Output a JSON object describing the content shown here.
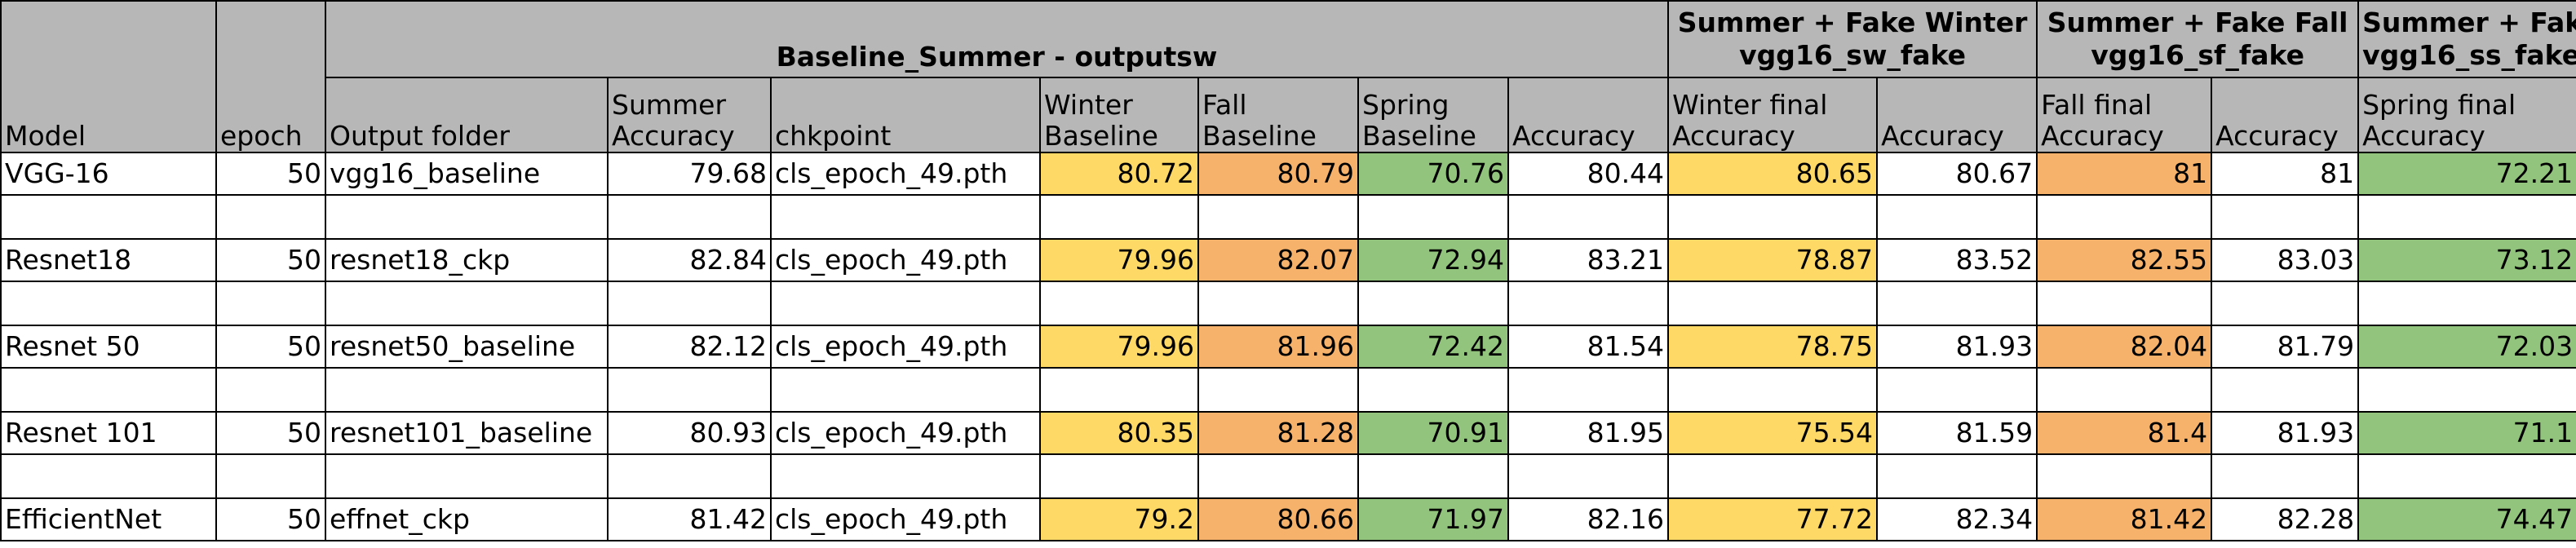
{
  "colors": {
    "header_bg": "#b7b7b7",
    "winter": "#ffd966",
    "fall": "#f6b26b",
    "spring": "#93c47d"
  },
  "header": {
    "model": "Model",
    "epoch": "epoch",
    "group_baseline": "Baseline_Summer - outputsw",
    "group_winter_line1": "Summer + Fake Winter",
    "group_winter_line2": "vgg16_sw_fake",
    "group_fall_line1": "Summer + Fake Fall",
    "group_fall_line2": "vgg16_sf_fake",
    "group_spring_line1": "Summer + Fake Spring",
    "group_spring_line2": "vgg16_ss_fake",
    "output_folder": "Output folder",
    "summer_accuracy_line1": "Summer",
    "summer_accuracy_line2": "Accuracy",
    "chkpoint": "chkpoint",
    "winter_baseline_line1": "Winter",
    "winter_baseline_line2": "Baseline",
    "fall_baseline_line1": "Fall",
    "fall_baseline_line2": "Baseline",
    "spring_baseline_line1": "Spring",
    "spring_baseline_line2": "Baseline",
    "sw_accuracy": "Accuracy",
    "winter_final_line1": "Winter final",
    "winter_final_line2": "Accuracy",
    "sf_accuracy": "Accuracy",
    "fall_final_line1": "Fall final",
    "fall_final_line2": "Accuracy",
    "ss_accuracy": "Accuracy",
    "spring_final_line1": "Spring final",
    "spring_final_line2": "Accuracy"
  },
  "rows": [
    {
      "model": "VGG-16",
      "epoch": "50",
      "output_folder": "vgg16_baseline",
      "summer_accuracy": "79.68",
      "chkpoint": "cls_epoch_49.pth",
      "winter_baseline": "80.72",
      "fall_baseline": "80.79",
      "spring_baseline": "70.76",
      "sw_accuracy": "80.44",
      "winter_final": "80.65",
      "sf_accuracy": "80.67",
      "fall_final": "81",
      "ss_accuracy": "81",
      "spring_final": "72.21"
    },
    {
      "model": "Resnet18",
      "epoch": "50",
      "output_folder": "resnet18_ckp",
      "summer_accuracy": "82.84",
      "chkpoint": "cls_epoch_49.pth",
      "winter_baseline": "79.96",
      "fall_baseline": "82.07",
      "spring_baseline": "72.94",
      "sw_accuracy": "83.21",
      "winter_final": "78.87",
      "sf_accuracy": "83.52",
      "fall_final": "82.55",
      "ss_accuracy": "83.03",
      "spring_final": "73.12"
    },
    {
      "model": "Resnet 50",
      "epoch": "50",
      "output_folder": "resnet50_baseline",
      "summer_accuracy": "82.12",
      "chkpoint": "cls_epoch_49.pth",
      "winter_baseline": "79.96",
      "fall_baseline": "81.96",
      "spring_baseline": "72.42",
      "sw_accuracy": "81.54",
      "winter_final": "78.75",
      "sf_accuracy": "81.93",
      "fall_final": "82.04",
      "ss_accuracy": "81.79",
      "spring_final": "72.03"
    },
    {
      "model": "Resnet 101",
      "epoch": "50",
      "output_folder": "resnet101_baseline",
      "summer_accuracy": "80.93",
      "chkpoint": "cls_epoch_49.pth",
      "winter_baseline": "80.35",
      "fall_baseline": "81.28",
      "spring_baseline": "70.91",
      "sw_accuracy": "81.95",
      "winter_final": "75.54",
      "sf_accuracy": "81.59",
      "fall_final": "81.4",
      "ss_accuracy": "81.93",
      "spring_final": "71.1"
    },
    {
      "model": "EfficientNet",
      "epoch": "50",
      "output_folder": "effnet_ckp",
      "summer_accuracy": "81.42",
      "chkpoint": "cls_epoch_49.pth",
      "winter_baseline": "79.2",
      "fall_baseline": "80.66",
      "spring_baseline": "71.97",
      "sw_accuracy": "82.16",
      "winter_final": "77.72",
      "sf_accuracy": "82.34",
      "fall_final": "81.42",
      "ss_accuracy": "82.28",
      "spring_final": "74.47"
    }
  ]
}
